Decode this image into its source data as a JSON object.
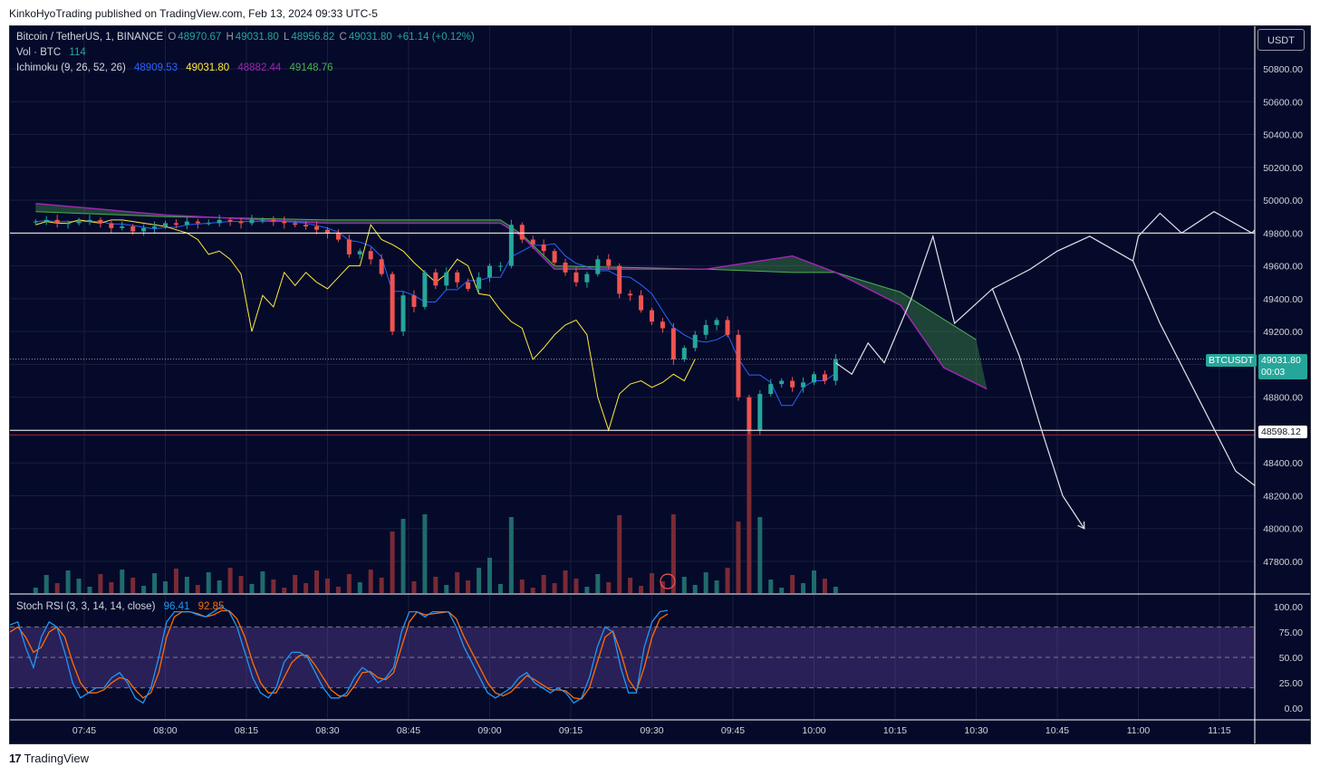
{
  "header": {
    "text": "KinkoHyoTrading published on TradingView.com, Feb 13, 2024 09:33 UTC-5"
  },
  "footer": {
    "logo": "17",
    "brand": "TradingView"
  },
  "currency_button": "USDT",
  "legend": {
    "symbol": "Bitcoin / TetherUS, 1, BINANCE",
    "o_label": "O",
    "o": "48970.67",
    "h_label": "H",
    "h": "49031.80",
    "l_label": "L",
    "l": "48956.82",
    "c_label": "C",
    "c": "49031.80",
    "change": "+61.14 (+0.12%)",
    "vol_label": "Vol · BTC",
    "vol": "114",
    "ichimoku_label": "Ichimoku (9, 26, 52, 26)",
    "ichi_v1": "48909.53",
    "ichi_v2": "49031.80",
    "ichi_v3": "48882.44",
    "ichi_v4": "49148.76",
    "stoch_label": "Stoch RSI (3, 3, 14, 14, close)",
    "stoch_k": "96.41",
    "stoch_d": "92.85"
  },
  "price_tags": {
    "symbol": "BTCUSDT",
    "price": "49031.80",
    "countdown": "00:03",
    "level": "48598.12"
  },
  "colors": {
    "up": "#26a69a",
    "down": "#ef5350",
    "bg": "#050a2a",
    "tenkan": "#2962ff",
    "kijun": "#b71c1c",
    "lagging": "#ffeb3b",
    "spanA": "#4caf50",
    "spanB": "#9c27b0",
    "stochK": "#2196f3",
    "stochD": "#ff6d00"
  },
  "chart_data": [
    {
      "type": "candlestick",
      "title": "Bitcoin / TetherUS, 1, BINANCE",
      "x_ticks": [
        "07:45",
        "08:00",
        "08:15",
        "08:30",
        "08:45",
        "09:00",
        "09:15",
        "09:30",
        "09:45",
        "10:00",
        "10:15",
        "10:30",
        "10:45",
        "11:00",
        "11:15"
      ],
      "y_ticks": [
        47800,
        48000,
        48200,
        48400,
        48600,
        48800,
        49000,
        49200,
        49400,
        49600,
        49800,
        50000,
        50200,
        50400,
        50600,
        50800
      ],
      "y_tick_labels": [
        "47800.00",
        "48000.00",
        "48200.00",
        "48400.00",
        "48600.00",
        "48800.00",
        "49000.00",
        "49200.00",
        "49400.00",
        "49600.00",
        "49800.00",
        "50000.00",
        "50200.00",
        "50400.00",
        "50600.00",
        "50800.00"
      ],
      "ylim": [
        47700,
        50900
      ],
      "series": [
        {
          "name": "Close",
          "points": [
            [
              "07:36",
              49870
            ],
            [
              "07:38",
              49880
            ],
            [
              "07:40",
              49860
            ],
            [
              "07:42",
              49860
            ],
            [
              "07:44",
              49870
            ],
            [
              "07:46",
              49880
            ],
            [
              "07:48",
              49860
            ],
            [
              "07:50",
              49830
            ],
            [
              "07:52",
              49840
            ],
            [
              "07:54",
              49810
            ],
            [
              "07:56",
              49830
            ],
            [
              "07:58",
              49840
            ],
            [
              "08:00",
              49860
            ],
            [
              "08:02",
              49850
            ],
            [
              "08:04",
              49870
            ],
            [
              "08:06",
              49860
            ],
            [
              "08:08",
              49860
            ],
            [
              "08:10",
              49880
            ],
            [
              "08:12",
              49870
            ],
            [
              "08:14",
              49860
            ],
            [
              "08:16",
              49880
            ],
            [
              "08:18",
              49880
            ],
            [
              "08:20",
              49870
            ],
            [
              "08:22",
              49860
            ],
            [
              "08:24",
              49850
            ],
            [
              "08:26",
              49840
            ],
            [
              "08:28",
              49820
            ],
            [
              "08:30",
              49800
            ],
            [
              "08:32",
              49760
            ],
            [
              "08:34",
              49670
            ],
            [
              "08:36",
              49690
            ],
            [
              "08:38",
              49640
            ],
            [
              "08:40",
              49550
            ],
            [
              "08:42",
              49200
            ],
            [
              "08:44",
              49420
            ],
            [
              "08:46",
              49350
            ],
            [
              "08:48",
              49560
            ],
            [
              "08:50",
              49480
            ],
            [
              "08:52",
              49560
            ],
            [
              "08:54",
              49500
            ],
            [
              "08:56",
              49460
            ],
            [
              "08:58",
              49530
            ],
            [
              "09:00",
              49600
            ],
            [
              "09:02",
              49600
            ],
            [
              "09:04",
              49850
            ],
            [
              "09:06",
              49760
            ],
            [
              "09:08",
              49730
            ],
            [
              "09:10",
              49690
            ],
            [
              "09:12",
              49620
            ],
            [
              "09:14",
              49560
            ],
            [
              "09:16",
              49500
            ],
            [
              "09:18",
              49550
            ],
            [
              "09:20",
              49640
            ],
            [
              "09:22",
              49600
            ],
            [
              "09:24",
              49430
            ],
            [
              "09:26",
              49420
            ],
            [
              "09:28",
              49330
            ],
            [
              "09:30",
              49260
            ],
            [
              "09:32",
              49220
            ],
            [
              "09:34",
              49030
            ],
            [
              "09:36",
              49100
            ],
            [
              "09:38",
              49180
            ],
            [
              "09:40",
              49240
            ],
            [
              "09:42",
              49270
            ],
            [
              "09:44",
              49180
            ],
            [
              "09:46",
              48800
            ],
            [
              "09:48",
              48600
            ],
            [
              "09:50",
              48820
            ],
            [
              "09:52",
              48880
            ],
            [
              "09:54",
              48900
            ],
            [
              "09:56",
              48860
            ],
            [
              "09:58",
              48890
            ],
            [
              "10:00",
              48940
            ],
            [
              "10:02",
              48900
            ],
            [
              "10:04",
              49031.8
            ]
          ]
        },
        {
          "name": "Tenkan",
          "values_note": "blue"
        },
        {
          "name": "Lagging span",
          "values_note": "yellow"
        }
      ],
      "horizontal_levels": [
        49800,
        48598.12,
        48570
      ],
      "current_price": 49031.8
    },
    {
      "type": "bar",
      "title": "Vol · BTC",
      "last_value": 114
    },
    {
      "type": "line",
      "title": "Stoch RSI (3, 3, 14, 14, close)",
      "y_ticks": [
        0,
        25,
        50,
        75,
        100
      ],
      "y_tick_labels": [
        "0.00",
        "25.00",
        "50.00",
        "75.00",
        "100.00"
      ],
      "ylim": [
        -10,
        110
      ],
      "bands": [
        20,
        50,
        80
      ],
      "series": [
        {
          "name": "K",
          "last": 96.41,
          "values": [
            82,
            85,
            60,
            40,
            70,
            85,
            80,
            55,
            25,
            10,
            15,
            20,
            20,
            30,
            35,
            25,
            10,
            5,
            20,
            50,
            85,
            95,
            95,
            95,
            92,
            90,
            95,
            100,
            95,
            80,
            55,
            30,
            15,
            10,
            20,
            45,
            55,
            55,
            50,
            35,
            20,
            10,
            10,
            15,
            30,
            40,
            35,
            25,
            30,
            40,
            75,
            95,
            95,
            90,
            95,
            95,
            95,
            80,
            60,
            45,
            30,
            15,
            10,
            15,
            20,
            30,
            35,
            25,
            20,
            15,
            20,
            15,
            5,
            10,
            30,
            60,
            80,
            75,
            40,
            15,
            15,
            60,
            85,
            95,
            96.41
          ]
        },
        {
          "name": "D",
          "last": 92.85,
          "values": [
            75,
            80,
            70,
            55,
            60,
            75,
            80,
            70,
            45,
            25,
            15,
            15,
            18,
            25,
            30,
            28,
            18,
            10,
            15,
            35,
            70,
            90,
            95,
            95,
            93,
            90,
            92,
            96,
            96,
            88,
            70,
            45,
            25,
            15,
            15,
            30,
            45,
            52,
            52,
            42,
            30,
            18,
            12,
            12,
            22,
            35,
            36,
            30,
            28,
            35,
            60,
            85,
            95,
            92,
            93,
            94,
            95,
            88,
            70,
            55,
            40,
            25,
            15,
            12,
            16,
            24,
            32,
            28,
            23,
            18,
            18,
            17,
            10,
            9,
            20,
            45,
            70,
            76,
            55,
            28,
            17,
            40,
            70,
            88,
            92.85
          ]
        }
      ]
    }
  ]
}
